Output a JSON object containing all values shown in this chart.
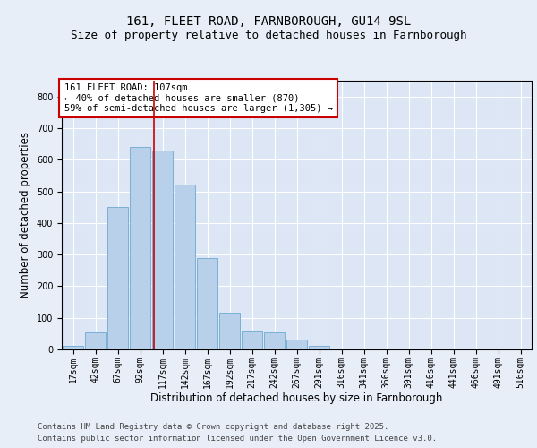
{
  "title_line1": "161, FLEET ROAD, FARNBOROUGH, GU14 9SL",
  "title_line2": "Size of property relative to detached houses in Farnborough",
  "xlabel": "Distribution of detached houses by size in Farnborough",
  "ylabel": "Number of detached properties",
  "footer_line1": "Contains HM Land Registry data © Crown copyright and database right 2025.",
  "footer_line2": "Contains public sector information licensed under the Open Government Licence v3.0.",
  "annotation_line1": "161 FLEET ROAD: 107sqm",
  "annotation_line2": "← 40% of detached houses are smaller (870)",
  "annotation_line3": "59% of semi-detached houses are larger (1,305) →",
  "bar_labels": [
    "17sqm",
    "42sqm",
    "67sqm",
    "92sqm",
    "117sqm",
    "142sqm",
    "167sqm",
    "192sqm",
    "217sqm",
    "242sqm",
    "267sqm",
    "291sqm",
    "316sqm",
    "341sqm",
    "366sqm",
    "391sqm",
    "416sqm",
    "441sqm",
    "466sqm",
    "491sqm",
    "516sqm"
  ],
  "bar_values": [
    10,
    55,
    450,
    640,
    630,
    520,
    290,
    115,
    60,
    55,
    30,
    12,
    0,
    0,
    0,
    0,
    0,
    0,
    3,
    0,
    0
  ],
  "bar_color": "#b8d0ea",
  "bar_edge_color": "#7aafd4",
  "vline_color": "#cc0000",
  "annotation_box_edge_color": "#cc0000",
  "annotation_box_face_color": "#ffffff",
  "bg_color": "#e8eef8",
  "plot_bg_color": "#dce6f5",
  "ylim": [
    0,
    850
  ],
  "yticks": [
    0,
    100,
    200,
    300,
    400,
    500,
    600,
    700,
    800
  ],
  "grid_color": "#ffffff",
  "title_fontsize": 10,
  "subtitle_fontsize": 9,
  "axis_label_fontsize": 8.5,
  "tick_fontsize": 7,
  "ann_fontsize": 7.5,
  "footer_fontsize": 6.5
}
